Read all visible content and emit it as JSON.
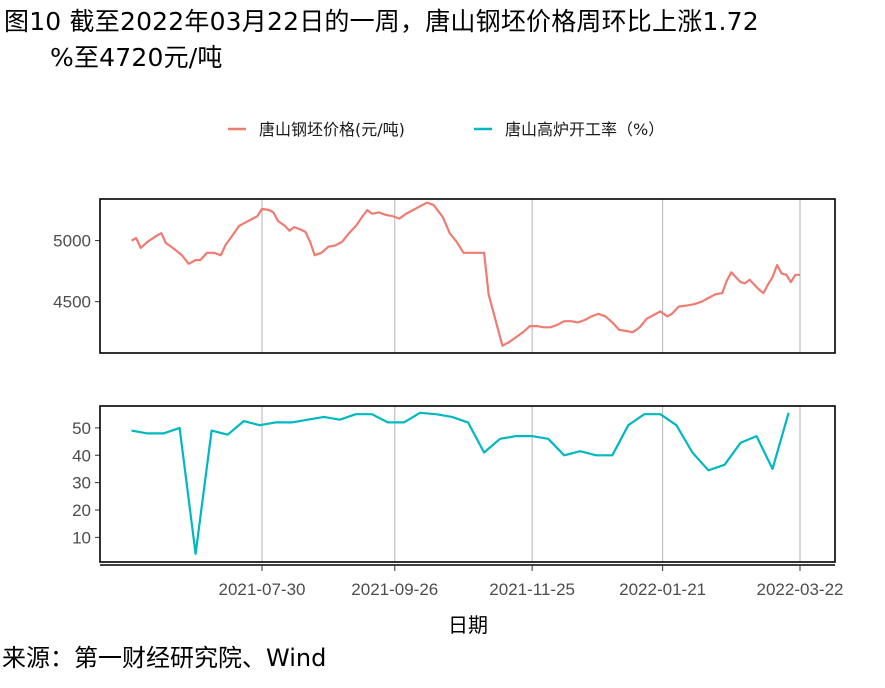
{
  "title": {
    "line1": "图10 截至2022年03月22日的一周，唐山钢坯价格周环比上涨1.72",
    "line2": "%至4720元/吨"
  },
  "source": "来源：第一财经研究院、Wind",
  "colors": {
    "price": "#f07b72",
    "rate": "#00b8c1",
    "grid": "#b3b3b3"
  },
  "chart_data": {
    "type": "line",
    "xlabel": "日期",
    "x_ticks": [
      "2021-07-30",
      "2021-09-26",
      "2021-11-25",
      "2022-01-21",
      "2022-03-22"
    ],
    "legend_position": "top",
    "panels": [
      {
        "series_name": "唐山钢坯价格(元/吨)",
        "y_ticks": [
          4500,
          5000
        ],
        "ylim": [
          4080,
          5340
        ],
        "grid": "vertical at x ticks",
        "points": [
          [
            "2021-06-03",
            5000
          ],
          [
            "2021-06-05",
            5020
          ],
          [
            "2021-06-07",
            4940
          ],
          [
            "2021-06-10",
            4990
          ],
          [
            "2021-06-14",
            5040
          ],
          [
            "2021-06-16",
            5060
          ],
          [
            "2021-06-18",
            4980
          ],
          [
            "2021-06-21",
            4940
          ],
          [
            "2021-06-25",
            4880
          ],
          [
            "2021-06-28",
            4810
          ],
          [
            "2021-07-01",
            4840
          ],
          [
            "2021-07-03",
            4840
          ],
          [
            "2021-07-06",
            4900
          ],
          [
            "2021-07-09",
            4900
          ],
          [
            "2021-07-12",
            4880
          ],
          [
            "2021-07-14",
            4960
          ],
          [
            "2021-07-17",
            5040
          ],
          [
            "2021-07-20",
            5120
          ],
          [
            "2021-07-23",
            5150
          ],
          [
            "2021-07-26",
            5180
          ],
          [
            "2021-07-28",
            5200
          ],
          [
            "2021-07-30",
            5260
          ],
          [
            "2021-08-02",
            5250
          ],
          [
            "2021-08-04",
            5230
          ],
          [
            "2021-08-06",
            5160
          ],
          [
            "2021-08-09",
            5120
          ],
          [
            "2021-08-11",
            5080
          ],
          [
            "2021-08-13",
            5110
          ],
          [
            "2021-08-16",
            5090
          ],
          [
            "2021-08-18",
            5070
          ],
          [
            "2021-08-20",
            4990
          ],
          [
            "2021-08-22",
            4880
          ],
          [
            "2021-08-25",
            4900
          ],
          [
            "2021-08-28",
            4950
          ],
          [
            "2021-08-31",
            4960
          ],
          [
            "2021-09-03",
            4990
          ],
          [
            "2021-09-06",
            5060
          ],
          [
            "2021-09-09",
            5120
          ],
          [
            "2021-09-12",
            5200
          ],
          [
            "2021-09-14",
            5250
          ],
          [
            "2021-09-16",
            5220
          ],
          [
            "2021-09-19",
            5230
          ],
          [
            "2021-09-22",
            5210
          ],
          [
            "2021-09-25",
            5200
          ],
          [
            "2021-09-28",
            5180
          ],
          [
            "2021-10-01",
            5220
          ],
          [
            "2021-10-04",
            5250
          ],
          [
            "2021-10-07",
            5280
          ],
          [
            "2021-10-10",
            5310
          ],
          [
            "2021-10-13",
            5290
          ],
          [
            "2021-10-15",
            5240
          ],
          [
            "2021-10-17",
            5190
          ],
          [
            "2021-10-20",
            5060
          ],
          [
            "2021-10-23",
            4990
          ],
          [
            "2021-10-26",
            4900
          ],
          [
            "2021-11-02",
            4900
          ],
          [
            "2021-11-04",
            4900
          ],
          [
            "2021-11-06",
            4560
          ],
          [
            "2021-11-09",
            4350
          ],
          [
            "2021-11-12",
            4140
          ],
          [
            "2021-11-15",
            4170
          ],
          [
            "2021-11-18",
            4210
          ],
          [
            "2021-11-21",
            4250
          ],
          [
            "2021-11-24",
            4300
          ],
          [
            "2021-11-27",
            4300
          ],
          [
            "2021-11-30",
            4290
          ],
          [
            "2021-12-03",
            4290
          ],
          [
            "2021-12-06",
            4310
          ],
          [
            "2021-12-09",
            4340
          ],
          [
            "2021-12-12",
            4340
          ],
          [
            "2021-12-15",
            4330
          ],
          [
            "2021-12-18",
            4350
          ],
          [
            "2021-12-21",
            4380
          ],
          [
            "2021-12-24",
            4400
          ],
          [
            "2021-12-27",
            4380
          ],
          [
            "2021-12-30",
            4330
          ],
          [
            "2022-01-02",
            4270
          ],
          [
            "2022-01-05",
            4260
          ],
          [
            "2022-01-08",
            4250
          ],
          [
            "2022-01-11",
            4290
          ],
          [
            "2022-01-14",
            4360
          ],
          [
            "2022-01-17",
            4390
          ],
          [
            "2022-01-20",
            4420
          ],
          [
            "2022-01-23",
            4380
          ],
          [
            "2022-01-25",
            4400
          ],
          [
            "2022-01-28",
            4460
          ],
          [
            "2022-02-01",
            4470
          ],
          [
            "2022-02-04",
            4480
          ],
          [
            "2022-02-07",
            4500
          ],
          [
            "2022-02-10",
            4530
          ],
          [
            "2022-02-13",
            4560
          ],
          [
            "2022-02-16",
            4570
          ],
          [
            "2022-02-18",
            4670
          ],
          [
            "2022-02-20",
            4740
          ],
          [
            "2022-02-22",
            4700
          ],
          [
            "2022-02-24",
            4660
          ],
          [
            "2022-02-26",
            4650
          ],
          [
            "2022-02-28",
            4680
          ],
          [
            "2022-03-02",
            4640
          ],
          [
            "2022-03-04",
            4600
          ],
          [
            "2022-03-06",
            4570
          ],
          [
            "2022-03-08",
            4640
          ],
          [
            "2022-03-10",
            4700
          ],
          [
            "2022-03-12",
            4800
          ],
          [
            "2022-03-14",
            4730
          ],
          [
            "2022-03-16",
            4720
          ],
          [
            "2022-03-18",
            4660
          ],
          [
            "2022-03-20",
            4720
          ],
          [
            "2022-03-22",
            4720
          ]
        ]
      },
      {
        "series_name": "唐山高炉开工率（%）",
        "y_ticks": [
          10,
          20,
          30,
          40,
          50
        ],
        "ylim": [
          1,
          58
        ],
        "grid": "vertical at x ticks",
        "points": [
          [
            "2021-06-03",
            49
          ],
          [
            "2021-06-10",
            48
          ],
          [
            "2021-06-17",
            48
          ],
          [
            "2021-06-24",
            50
          ],
          [
            "2021-07-01",
            4
          ],
          [
            "2021-07-08",
            49
          ],
          [
            "2021-07-15",
            47.5
          ],
          [
            "2021-07-22",
            52.5
          ],
          [
            "2021-07-29",
            51
          ],
          [
            "2021-08-05",
            52
          ],
          [
            "2021-08-12",
            52
          ],
          [
            "2021-08-19",
            53
          ],
          [
            "2021-08-26",
            54
          ],
          [
            "2021-09-02",
            53
          ],
          [
            "2021-09-09",
            55
          ],
          [
            "2021-09-16",
            55
          ],
          [
            "2021-09-23",
            52
          ],
          [
            "2021-09-30",
            52
          ],
          [
            "2021-10-07",
            55.5
          ],
          [
            "2021-10-14",
            55
          ],
          [
            "2021-10-21",
            54
          ],
          [
            "2021-10-28",
            52
          ],
          [
            "2021-11-04",
            41
          ],
          [
            "2021-11-11",
            46
          ],
          [
            "2021-11-18",
            47
          ],
          [
            "2021-11-25",
            47
          ],
          [
            "2021-12-02",
            46
          ],
          [
            "2021-12-09",
            40
          ],
          [
            "2021-12-16",
            41.5
          ],
          [
            "2021-12-23",
            40
          ],
          [
            "2021-12-30",
            40
          ],
          [
            "2022-01-06",
            51
          ],
          [
            "2022-01-13",
            55
          ],
          [
            "2022-01-20",
            55
          ],
          [
            "2022-01-27",
            51
          ],
          [
            "2022-02-03",
            41
          ],
          [
            "2022-02-10",
            34.5
          ],
          [
            "2022-02-17",
            36.5
          ],
          [
            "2022-02-24",
            44.5
          ],
          [
            "2022-03-03",
            47
          ],
          [
            "2022-03-10",
            35
          ],
          [
            "2022-03-17",
            55.5
          ]
        ]
      }
    ]
  }
}
